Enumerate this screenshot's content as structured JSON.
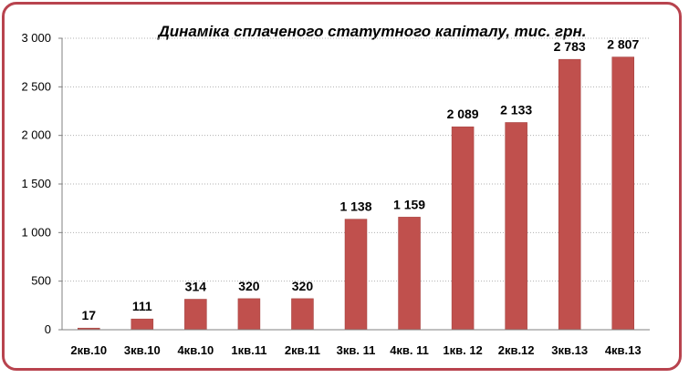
{
  "chart_data": {
    "type": "bar",
    "title": "Динаміка сплаченого статутного капіталу, тис. грн.",
    "xlabel": "",
    "ylabel": "",
    "categories": [
      "2кв.10",
      "3кв.10",
      "4кв.10",
      "1кв.11",
      "2кв.11",
      "3кв. 11",
      "4кв. 11",
      "1кв. 12",
      "2кв.12",
      "3кв.13",
      "4кв.13"
    ],
    "values": [
      17,
      111,
      314,
      320,
      320,
      1138,
      1159,
      2089,
      2133,
      2783,
      2807
    ],
    "data_labels": [
      "17",
      "111",
      "314",
      "320",
      "320",
      "1 138",
      "1 159",
      "2 089",
      "2 133",
      "2 783",
      "2 807"
    ],
    "ylim": [
      0,
      3000
    ],
    "yticks": [
      0,
      500,
      1000,
      1500,
      2000,
      2500,
      3000
    ],
    "ytick_labels": [
      "0",
      "500",
      "1 000",
      "1 500",
      "2 000",
      "2 500",
      "3 000"
    ],
    "grid": true,
    "legend": "none",
    "colors": {
      "bar": "#c0504d",
      "bar_edge": "#a03c3a",
      "frame": "#b8434e",
      "grid": "#b0b0b0",
      "plot_bg": "#ffffff"
    }
  }
}
